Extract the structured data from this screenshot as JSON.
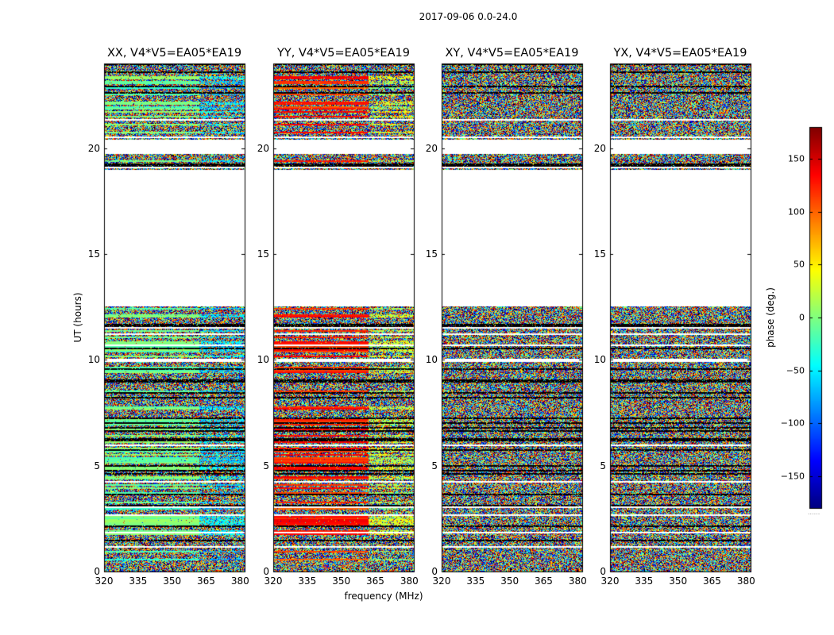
{
  "suptitle": "2017-09-06 0.0-24.0",
  "chart_data": {
    "type": "heatmap",
    "title": "2017-09-06 0.0-24.0",
    "xlabel": "frequency (MHz)",
    "ylabel": "UT (hours)",
    "xlim": [
      320,
      382
    ],
    "ylim": [
      0,
      24
    ],
    "xticks": [
      320,
      335,
      350,
      365,
      380
    ],
    "yticks": [
      0,
      5,
      10,
      15,
      20
    ],
    "panels": [
      {
        "title": "XX, V4*V5=EA05*EA19",
        "pol": "XX",
        "base_phase": -10,
        "band_phase": -60
      },
      {
        "title": "YY, V4*V5=EA05*EA19",
        "pol": "YY",
        "base_phase": 120,
        "band_phase": 20
      },
      {
        "title": "XY, V4*V5=EA05*EA19",
        "pol": "XY",
        "base_phase": null,
        "band_phase": null
      },
      {
        "title": "YX, V4*V5=EA05*EA19",
        "pol": "YX",
        "base_phase": null,
        "band_phase": null
      }
    ],
    "data_ranges_hours": [
      [
        0.0,
        12.5
      ],
      [
        19.0,
        19.7
      ],
      [
        20.4,
        24.0
      ]
    ],
    "blank_ranges_hours": [
      [
        12.5,
        19.0
      ],
      [
        19.7,
        20.4
      ]
    ],
    "colorbar": {
      "label": "phase (deg.)",
      "range": [
        -180,
        180
      ],
      "ticks": [
        -150,
        -100,
        -50,
        0,
        50,
        100,
        150
      ],
      "tick_labels": [
        "−150",
        "−100",
        "−50",
        "0",
        "50",
        "100",
        "150"
      ],
      "colormap": "jet"
    }
  },
  "footnote": "......"
}
